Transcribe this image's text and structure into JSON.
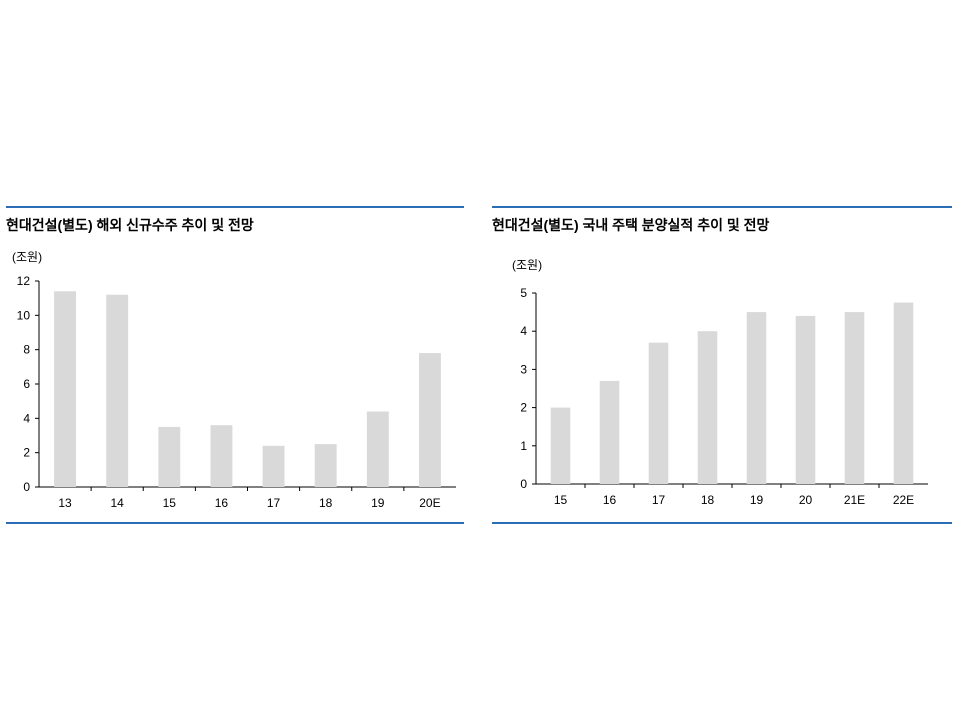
{
  "chart_data": [
    {
      "type": "bar",
      "title": "현대건설(별도) 해외 신규수주 추이 및 전망",
      "unit": "(조원)",
      "categories": [
        "13",
        "14",
        "15",
        "16",
        "17",
        "18",
        "19",
        "20E"
      ],
      "values": [
        11.4,
        11.2,
        3.5,
        3.6,
        2.4,
        2.5,
        4.4,
        7.8
      ],
      "yticks": [
        "0",
        "2",
        "4",
        "6",
        "8",
        "10",
        "12"
      ],
      "ylim": [
        0,
        12
      ],
      "bar_color": "#d9d9d9",
      "grid": false
    },
    {
      "type": "bar",
      "title": "현대건설(별도) 국내 주택 분양실적 추이 및 전망",
      "unit": "(조원)",
      "categories": [
        "15",
        "16",
        "17",
        "18",
        "19",
        "20",
        "21E",
        "22E"
      ],
      "values": [
        2.0,
        2.7,
        3.7,
        4.0,
        4.5,
        4.4,
        4.5,
        4.75
      ],
      "yticks": [
        "0",
        "1",
        "2",
        "3",
        "4",
        "5"
      ],
      "ylim": [
        0,
        5
      ],
      "bar_color": "#d9d9d9",
      "grid": false
    }
  ]
}
